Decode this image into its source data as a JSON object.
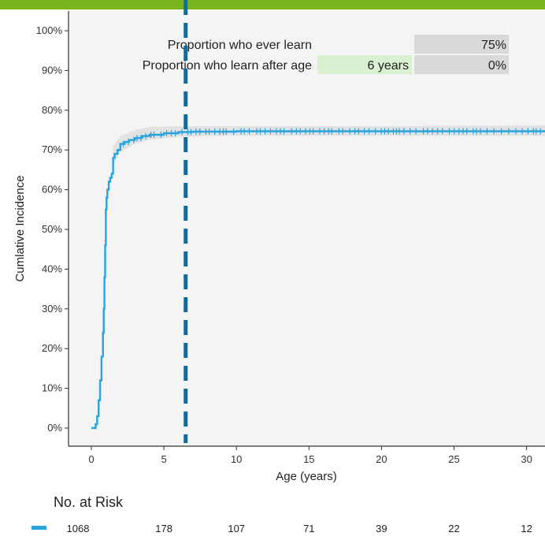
{
  "colors": {
    "top_bar": "#7ab51d",
    "panel_bg": "#f4f4f4",
    "curve": "#29a3dd",
    "ci_band": "#e0e0e0",
    "marker_line": "#0a6e9e",
    "value_box": "#d9d9d9",
    "input_box": "#d9f0d1"
  },
  "summary": {
    "ever_label": "Proportion who ever learn",
    "ever_value": "75%",
    "after_label": "Proportion who learn after age",
    "after_age": "6 years",
    "after_value": "0%"
  },
  "chart_data": {
    "type": "line",
    "xlabel": "Age (years)",
    "ylabel": "Cumlative Incidence",
    "xlim": [
      -1.5,
      31.5
    ],
    "ylim": [
      0,
      100
    ],
    "x_ticks": [
      0,
      5,
      10,
      15,
      20,
      25,
      30
    ],
    "y_ticks": [
      "0%",
      "10%",
      "20%",
      "30%",
      "40%",
      "50%",
      "60%",
      "70%",
      "80%",
      "90%",
      "100%"
    ],
    "vertical_marker_x": 6.5,
    "series": [
      {
        "x": [
          0,
          0.3,
          0.4,
          0.5,
          0.6,
          0.7,
          0.8,
          0.85,
          0.9,
          0.95,
          1.0,
          1.05,
          1.1,
          1.2,
          1.3,
          1.4,
          1.5,
          1.6,
          1.8,
          2.0,
          2.3,
          2.6,
          3.0,
          3.5,
          4.0,
          5.0,
          6.0,
          7.0,
          10.0,
          15.0,
          20.0,
          25.0,
          30.0,
          31.5
        ],
        "y": [
          0,
          1,
          3,
          7,
          12,
          18,
          24,
          30,
          38,
          46,
          55,
          58,
          60,
          62,
          63,
          64,
          68,
          69,
          70,
          71.5,
          72,
          72.5,
          73,
          73.5,
          73.8,
          74.2,
          74.5,
          74.6,
          74.7,
          74.7,
          74.7,
          74.7,
          74.7,
          74.7
        ]
      }
    ],
    "ci_band": {
      "x": [
        1.5,
        2.0,
        3.0,
        4.0,
        6.0,
        10.0,
        20.0,
        31.5
      ],
      "lower": [
        66,
        69.5,
        71.5,
        72.5,
        73.3,
        73.6,
        73.6,
        73.5
      ],
      "upper": [
        71,
        73.5,
        75,
        75.8,
        76,
        76,
        76,
        76.2
      ]
    },
    "censor_marks_from": 2.2,
    "censor_marks_to": 31,
    "risk_table": {
      "title": "No. at Risk",
      "values": [
        "1068",
        "178",
        "107",
        "71",
        "39",
        "22",
        "12"
      ]
    }
  }
}
